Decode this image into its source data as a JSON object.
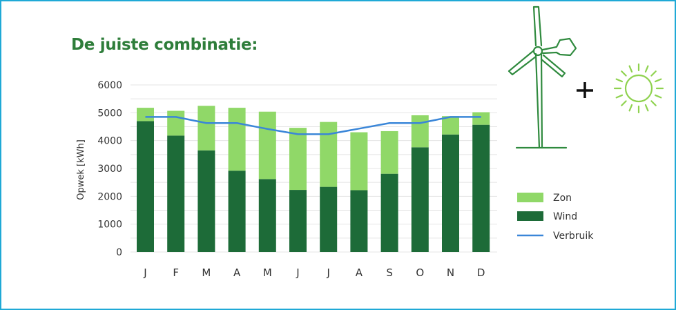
{
  "colors": {
    "frame": "#1fa9d6",
    "title": "#2e7d3a",
    "zon": "#90d868",
    "wind": "#1d6b38",
    "verbruik": "#3a86d8",
    "icon": "#2f8a3e",
    "sun": "#8fd24f",
    "grid": "#e4e4e4"
  },
  "icons": {
    "turbine": "wind-turbine-icon",
    "plus": "plus-icon",
    "sun": "sun-icon"
  },
  "chart_data": {
    "type": "bar",
    "stacked": true,
    "title": "De juiste combinatie:",
    "ylabel": "Opwek [kWh]",
    "xlabel": "",
    "ylim": [
      0,
      6000
    ],
    "yticks": [
      0,
      1000,
      2000,
      3000,
      4000,
      5000,
      6000
    ],
    "categories": [
      "J",
      "F",
      "M",
      "A",
      "M",
      "J",
      "J",
      "A",
      "S",
      "O",
      "N",
      "D"
    ],
    "series": [
      {
        "name": "Wind",
        "kind": "bar",
        "values": [
          4700,
          4180,
          3650,
          2920,
          2620,
          2230,
          2340,
          2220,
          2810,
          3760,
          4220,
          4570
        ]
      },
      {
        "name": "Zon",
        "kind": "bar",
        "values": [
          480,
          890,
          1600,
          2260,
          2420,
          2230,
          2330,
          2080,
          1530,
          1150,
          660,
          450
        ]
      },
      {
        "name": "Verbruik",
        "kind": "line",
        "values": [
          4850,
          4850,
          4630,
          4630,
          4420,
          4230,
          4230,
          4430,
          4630,
          4630,
          4850,
          4850
        ]
      }
    ],
    "legend": {
      "placement": "right",
      "entries": [
        "Zon",
        "Wind",
        "Verbruik"
      ]
    },
    "grid": true
  }
}
